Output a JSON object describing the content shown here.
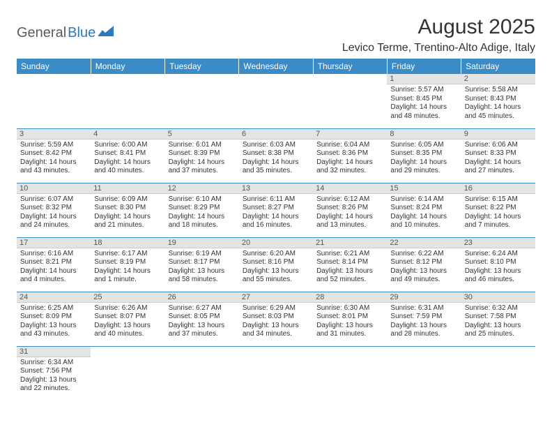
{
  "logo": {
    "text1": "General",
    "text2": "Blue"
  },
  "title": "August 2025",
  "location": "Levico Terme, Trentino-Alto Adige, Italy",
  "colors": {
    "header_bg": "#3b8bc7",
    "header_text": "#ffffff",
    "daynum_bg": "#e4e4e4",
    "border": "#3b8bc7",
    "logo_gray": "#5b5b5b",
    "logo_blue": "#2a7bbf"
  },
  "day_headers": [
    "Sunday",
    "Monday",
    "Tuesday",
    "Wednesday",
    "Thursday",
    "Friday",
    "Saturday"
  ],
  "weeks": [
    [
      null,
      null,
      null,
      null,
      null,
      {
        "n": "1",
        "sr": "Sunrise: 5:57 AM",
        "ss": "Sunset: 8:45 PM",
        "d1": "Daylight: 14 hours",
        "d2": "and 48 minutes."
      },
      {
        "n": "2",
        "sr": "Sunrise: 5:58 AM",
        "ss": "Sunset: 8:43 PM",
        "d1": "Daylight: 14 hours",
        "d2": "and 45 minutes."
      }
    ],
    [
      {
        "n": "3",
        "sr": "Sunrise: 5:59 AM",
        "ss": "Sunset: 8:42 PM",
        "d1": "Daylight: 14 hours",
        "d2": "and 43 minutes."
      },
      {
        "n": "4",
        "sr": "Sunrise: 6:00 AM",
        "ss": "Sunset: 8:41 PM",
        "d1": "Daylight: 14 hours",
        "d2": "and 40 minutes."
      },
      {
        "n": "5",
        "sr": "Sunrise: 6:01 AM",
        "ss": "Sunset: 8:39 PM",
        "d1": "Daylight: 14 hours",
        "d2": "and 37 minutes."
      },
      {
        "n": "6",
        "sr": "Sunrise: 6:03 AM",
        "ss": "Sunset: 8:38 PM",
        "d1": "Daylight: 14 hours",
        "d2": "and 35 minutes."
      },
      {
        "n": "7",
        "sr": "Sunrise: 6:04 AM",
        "ss": "Sunset: 8:36 PM",
        "d1": "Daylight: 14 hours",
        "d2": "and 32 minutes."
      },
      {
        "n": "8",
        "sr": "Sunrise: 6:05 AM",
        "ss": "Sunset: 8:35 PM",
        "d1": "Daylight: 14 hours",
        "d2": "and 29 minutes."
      },
      {
        "n": "9",
        "sr": "Sunrise: 6:06 AM",
        "ss": "Sunset: 8:33 PM",
        "d1": "Daylight: 14 hours",
        "d2": "and 27 minutes."
      }
    ],
    [
      {
        "n": "10",
        "sr": "Sunrise: 6:07 AM",
        "ss": "Sunset: 8:32 PM",
        "d1": "Daylight: 14 hours",
        "d2": "and 24 minutes."
      },
      {
        "n": "11",
        "sr": "Sunrise: 6:09 AM",
        "ss": "Sunset: 8:30 PM",
        "d1": "Daylight: 14 hours",
        "d2": "and 21 minutes."
      },
      {
        "n": "12",
        "sr": "Sunrise: 6:10 AM",
        "ss": "Sunset: 8:29 PM",
        "d1": "Daylight: 14 hours",
        "d2": "and 18 minutes."
      },
      {
        "n": "13",
        "sr": "Sunrise: 6:11 AM",
        "ss": "Sunset: 8:27 PM",
        "d1": "Daylight: 14 hours",
        "d2": "and 16 minutes."
      },
      {
        "n": "14",
        "sr": "Sunrise: 6:12 AM",
        "ss": "Sunset: 8:26 PM",
        "d1": "Daylight: 14 hours",
        "d2": "and 13 minutes."
      },
      {
        "n": "15",
        "sr": "Sunrise: 6:14 AM",
        "ss": "Sunset: 8:24 PM",
        "d1": "Daylight: 14 hours",
        "d2": "and 10 minutes."
      },
      {
        "n": "16",
        "sr": "Sunrise: 6:15 AM",
        "ss": "Sunset: 8:22 PM",
        "d1": "Daylight: 14 hours",
        "d2": "and 7 minutes."
      }
    ],
    [
      {
        "n": "17",
        "sr": "Sunrise: 6:16 AM",
        "ss": "Sunset: 8:21 PM",
        "d1": "Daylight: 14 hours",
        "d2": "and 4 minutes."
      },
      {
        "n": "18",
        "sr": "Sunrise: 6:17 AM",
        "ss": "Sunset: 8:19 PM",
        "d1": "Daylight: 14 hours",
        "d2": "and 1 minute."
      },
      {
        "n": "19",
        "sr": "Sunrise: 6:19 AM",
        "ss": "Sunset: 8:17 PM",
        "d1": "Daylight: 13 hours",
        "d2": "and 58 minutes."
      },
      {
        "n": "20",
        "sr": "Sunrise: 6:20 AM",
        "ss": "Sunset: 8:16 PM",
        "d1": "Daylight: 13 hours",
        "d2": "and 55 minutes."
      },
      {
        "n": "21",
        "sr": "Sunrise: 6:21 AM",
        "ss": "Sunset: 8:14 PM",
        "d1": "Daylight: 13 hours",
        "d2": "and 52 minutes."
      },
      {
        "n": "22",
        "sr": "Sunrise: 6:22 AM",
        "ss": "Sunset: 8:12 PM",
        "d1": "Daylight: 13 hours",
        "d2": "and 49 minutes."
      },
      {
        "n": "23",
        "sr": "Sunrise: 6:24 AM",
        "ss": "Sunset: 8:10 PM",
        "d1": "Daylight: 13 hours",
        "d2": "and 46 minutes."
      }
    ],
    [
      {
        "n": "24",
        "sr": "Sunrise: 6:25 AM",
        "ss": "Sunset: 8:09 PM",
        "d1": "Daylight: 13 hours",
        "d2": "and 43 minutes."
      },
      {
        "n": "25",
        "sr": "Sunrise: 6:26 AM",
        "ss": "Sunset: 8:07 PM",
        "d1": "Daylight: 13 hours",
        "d2": "and 40 minutes."
      },
      {
        "n": "26",
        "sr": "Sunrise: 6:27 AM",
        "ss": "Sunset: 8:05 PM",
        "d1": "Daylight: 13 hours",
        "d2": "and 37 minutes."
      },
      {
        "n": "27",
        "sr": "Sunrise: 6:29 AM",
        "ss": "Sunset: 8:03 PM",
        "d1": "Daylight: 13 hours",
        "d2": "and 34 minutes."
      },
      {
        "n": "28",
        "sr": "Sunrise: 6:30 AM",
        "ss": "Sunset: 8:01 PM",
        "d1": "Daylight: 13 hours",
        "d2": "and 31 minutes."
      },
      {
        "n": "29",
        "sr": "Sunrise: 6:31 AM",
        "ss": "Sunset: 7:59 PM",
        "d1": "Daylight: 13 hours",
        "d2": "and 28 minutes."
      },
      {
        "n": "30",
        "sr": "Sunrise: 6:32 AM",
        "ss": "Sunset: 7:58 PM",
        "d1": "Daylight: 13 hours",
        "d2": "and 25 minutes."
      }
    ],
    [
      {
        "n": "31",
        "sr": "Sunrise: 6:34 AM",
        "ss": "Sunset: 7:56 PM",
        "d1": "Daylight: 13 hours",
        "d2": "and 22 minutes."
      },
      null,
      null,
      null,
      null,
      null,
      null
    ]
  ]
}
